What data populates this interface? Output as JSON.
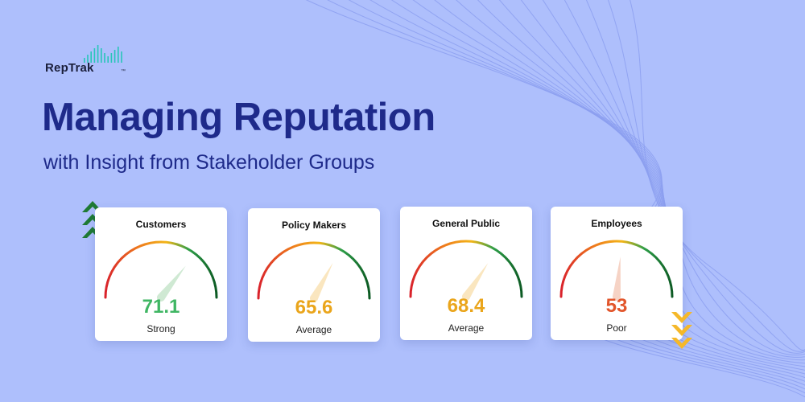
{
  "brand": {
    "name": "RepTrak",
    "tm": "™"
  },
  "headline": {
    "title": "Managing Reputation",
    "subtitle": "with Insight from Stakeholder Groups"
  },
  "colors": {
    "background": "#aebffc",
    "title": "#1e2a8a",
    "gauge_red": "#d9222b",
    "gauge_orange": "#ee7a1c",
    "gauge_yellow": "#f3b517",
    "gauge_green": "#2e9e48",
    "gauge_dark_green": "#0c5a23",
    "up_chevron": "#1f7a34",
    "down_chevron": "#f5b82a"
  },
  "cards": [
    {
      "label": "Customers",
      "score": "71.1",
      "rating": "Strong",
      "value": 71.1,
      "score_color": "#3fb663",
      "needle_color": "#cfe9d3"
    },
    {
      "label": "Policy Makers",
      "score": "65.6",
      "rating": "Average",
      "value": 65.6,
      "score_color": "#eaa51b",
      "needle_color": "#fae6bf"
    },
    {
      "label": "General Public",
      "score": "68.4",
      "rating": "Average",
      "value": 68.4,
      "score_color": "#eaa51b",
      "needle_color": "#fae6bf"
    },
    {
      "label": "Employees",
      "score": "53",
      "rating": "Poor",
      "value": 53,
      "score_color": "#e2562c",
      "needle_color": "#f6d3c5"
    }
  ],
  "indicators": {
    "customers": {
      "direction": "up",
      "icon": "triple-chevron-up-icon"
    },
    "employees": {
      "direction": "down",
      "icon": "triple-chevron-down-icon"
    }
  }
}
